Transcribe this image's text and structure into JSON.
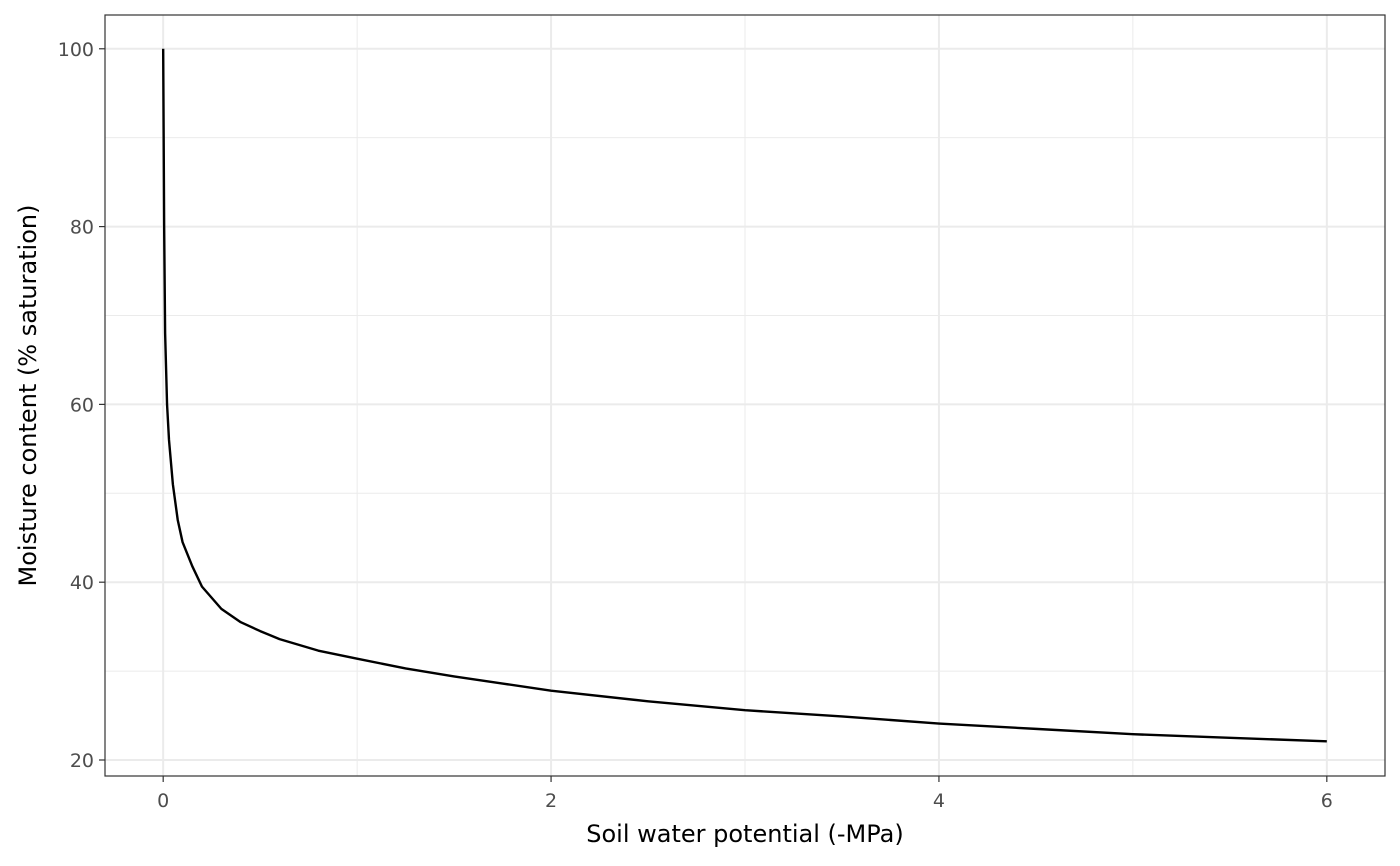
{
  "chart_data": {
    "type": "line",
    "xlabel": "Soil water potential (-MPa)",
    "ylabel": "Moisture content (% saturation)",
    "xlim": [
      -0.3,
      6.3
    ],
    "ylim": [
      18.2,
      103.8
    ],
    "x_ticks": [
      0,
      2,
      4,
      6
    ],
    "x_tick_labels": [
      "0",
      "2",
      "4",
      "6"
    ],
    "y_ticks": [
      20,
      40,
      60,
      80,
      100
    ],
    "y_tick_labels": [
      "20",
      "40",
      "60",
      "80",
      "100"
    ],
    "x_minor_ticks": [
      1,
      3,
      5
    ],
    "y_minor_ticks": [
      30,
      50,
      70,
      90
    ],
    "grid": true,
    "series": [
      {
        "color": "#000000",
        "x": [
          0,
          0.005,
          0.01,
          0.02,
          0.03,
          0.05,
          0.075,
          0.1,
          0.15,
          0.2,
          0.3,
          0.4,
          0.5,
          0.6,
          0.8,
          1.0,
          1.25,
          1.5,
          1.75,
          2.0,
          2.5,
          3.0,
          3.5,
          4.0,
          4.5,
          5.0,
          5.5,
          6.0
        ],
        "y": [
          100,
          80,
          68,
          60,
          56,
          51,
          47,
          44.5,
          41.8,
          39.5,
          37.0,
          35.5,
          34.5,
          33.6,
          32.3,
          31.4,
          30.3,
          29.4,
          28.6,
          27.8,
          26.6,
          25.6,
          24.9,
          24.1,
          23.5,
          22.9,
          22.5,
          22.1
        ]
      }
    ]
  }
}
